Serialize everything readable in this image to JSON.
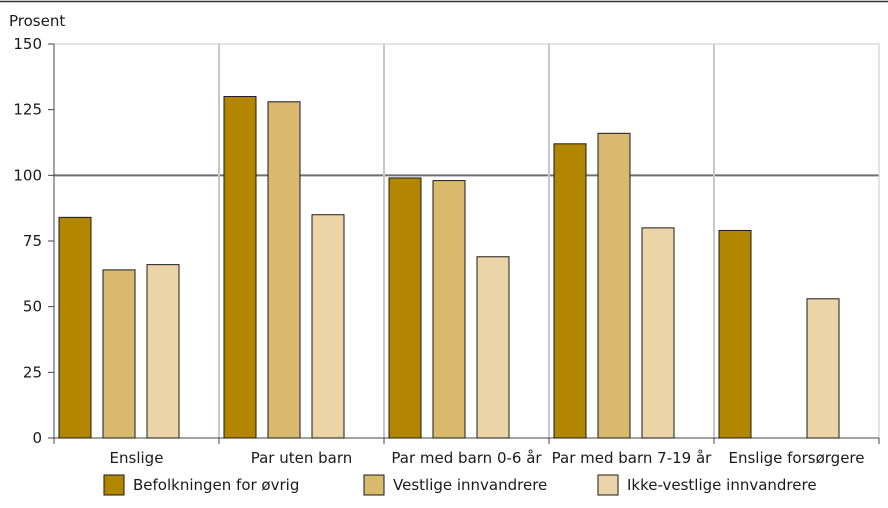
{
  "chart_data": {
    "type": "bar",
    "ylabel": "Prosent",
    "ylim": [
      0,
      150
    ],
    "yticks": [
      0,
      25,
      50,
      75,
      100,
      125,
      150
    ],
    "reference_line": 100,
    "categories": [
      "Enslige",
      "Par uten barn",
      "Par med barn 0-6 år",
      "Par med barn 7-19 år",
      "Enslige forsørgere"
    ],
    "series": [
      {
        "name": "Befolkningen for øvrig",
        "color": "#b38600",
        "values": [
          84,
          130,
          99,
          112,
          79
        ]
      },
      {
        "name": "Vestlige innvandrere",
        "color": "#d9b96e",
        "values": [
          64,
          128,
          98,
          116,
          null
        ]
      },
      {
        "name": "Ikke-vestlige innvandrere",
        "color": "#ebd5a8",
        "values": [
          66,
          85,
          69,
          80,
          53
        ]
      }
    ],
    "grid": "vertical category separators",
    "legend_position": "bottom"
  }
}
